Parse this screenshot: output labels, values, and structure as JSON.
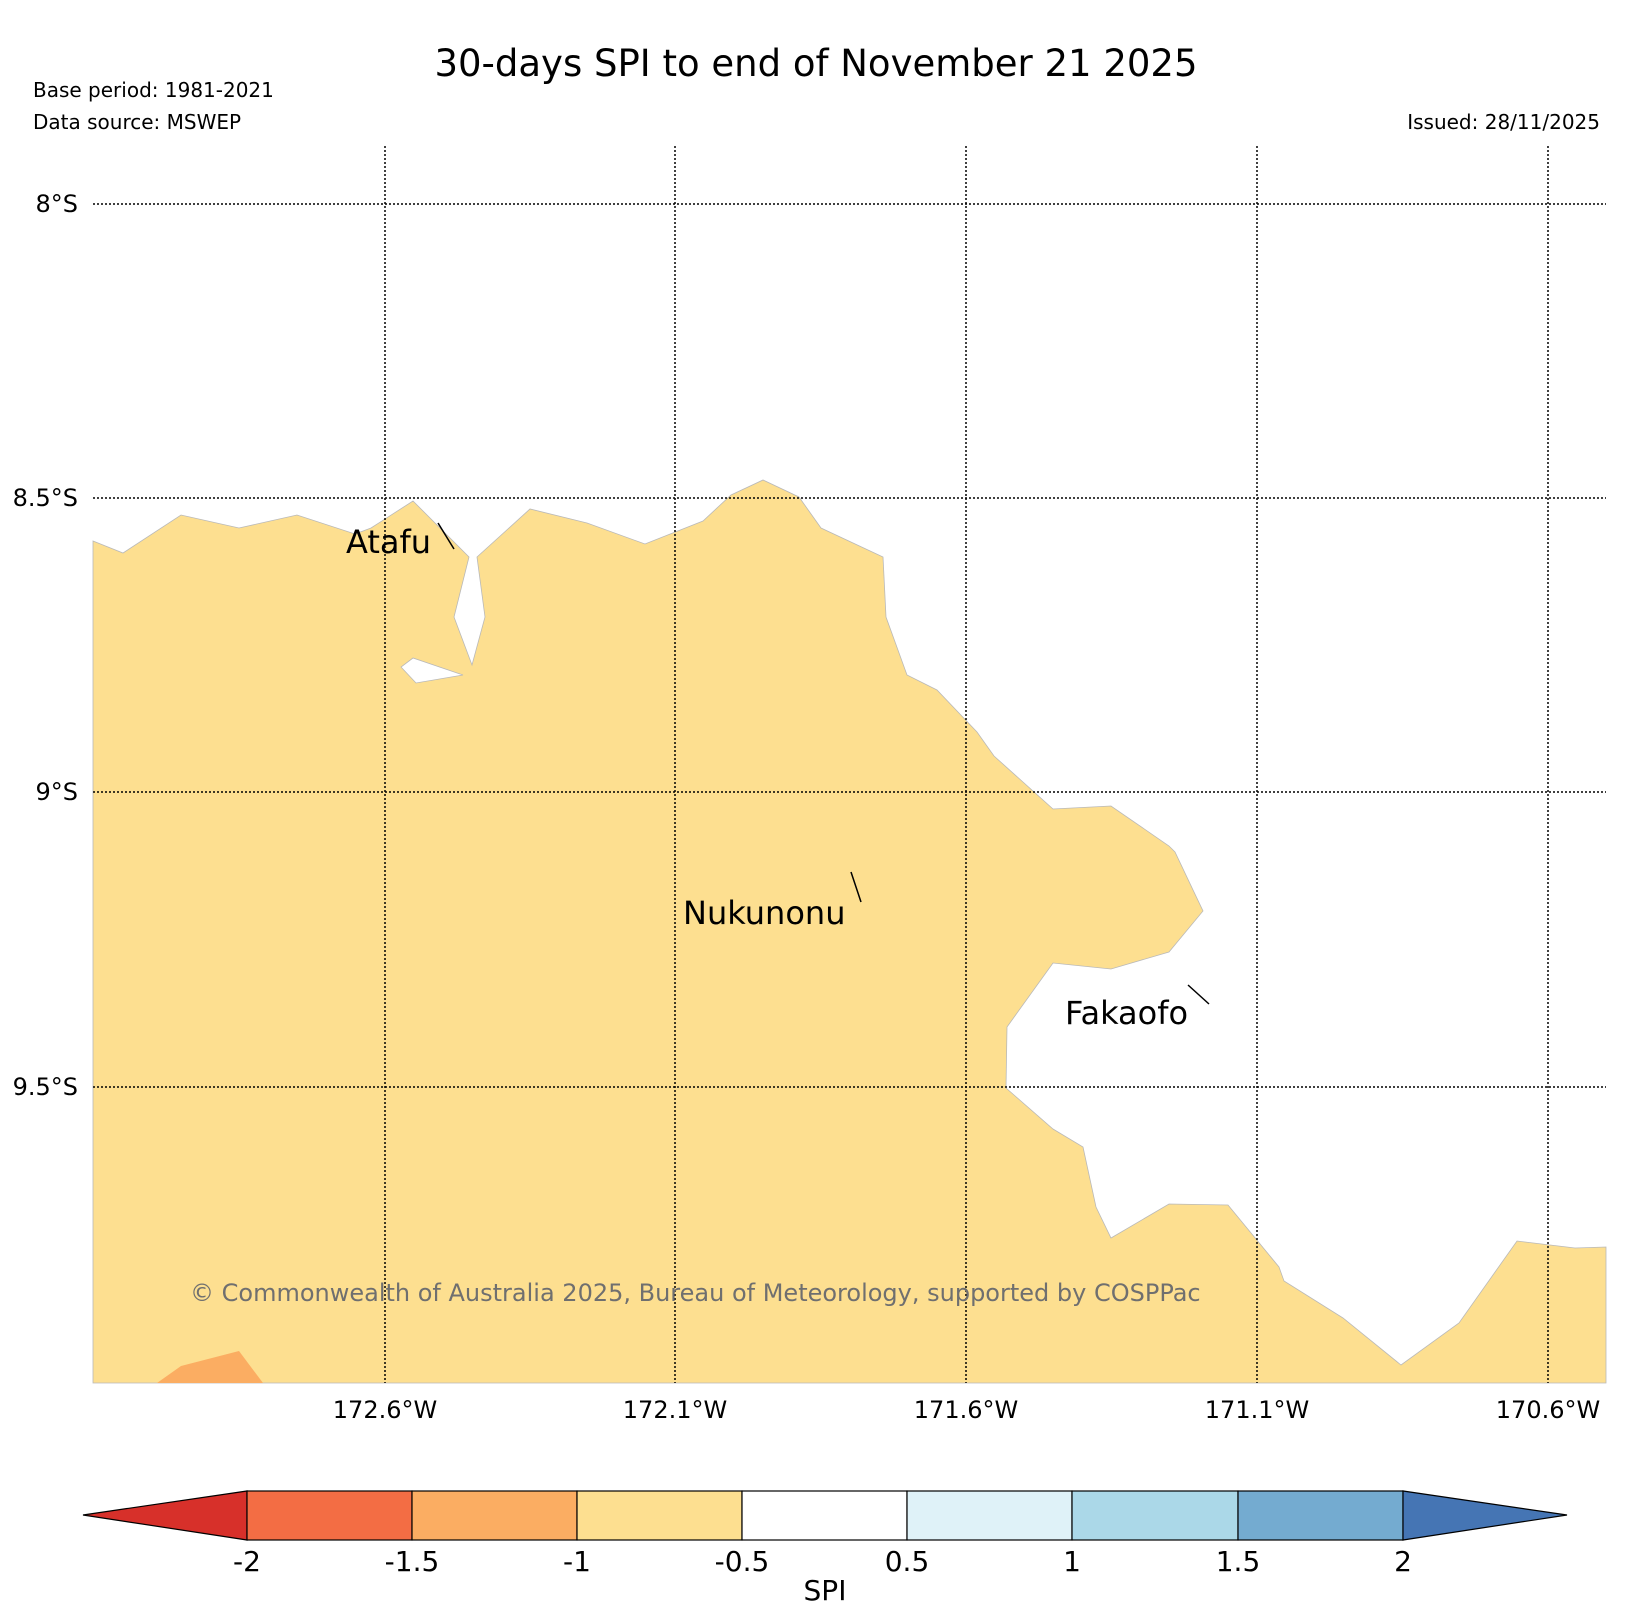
{
  "header": {
    "title": "30-days SPI to end of November 21 2025",
    "base_period": "Base period: 1981-2021",
    "data_source": "Data source: MSWEP",
    "issued": "Issued: 28/11/2025"
  },
  "map": {
    "lat_labels": [
      "8°S",
      "8.5°S",
      "9°S",
      "9.5°S"
    ],
    "lon_labels": [
      "172.6°W",
      "172.1°W",
      "171.6°W",
      "171.1°W",
      "170.6°W"
    ],
    "places": [
      "Atafu",
      "Nukunonu",
      "Fakaofo"
    ],
    "copyright": "© Commonwealth of Australia 2025, Bureau of Meteorology, supported by COSPPac",
    "region_colors": {
      "main": "#fddf90",
      "southwest_patch": "#fbad62"
    }
  },
  "legend": {
    "label": "SPI",
    "ticks": [
      "-2",
      "-1.5",
      "-1",
      "-0.5",
      "0.5",
      "1",
      "1.5",
      "2"
    ],
    "colors": [
      "#d7302a",
      "#f36d44",
      "#fbad62",
      "#fddf90",
      "#ffffff",
      "#dff2f8",
      "#abd8e8",
      "#74abd0",
      "#4575b4"
    ]
  }
}
